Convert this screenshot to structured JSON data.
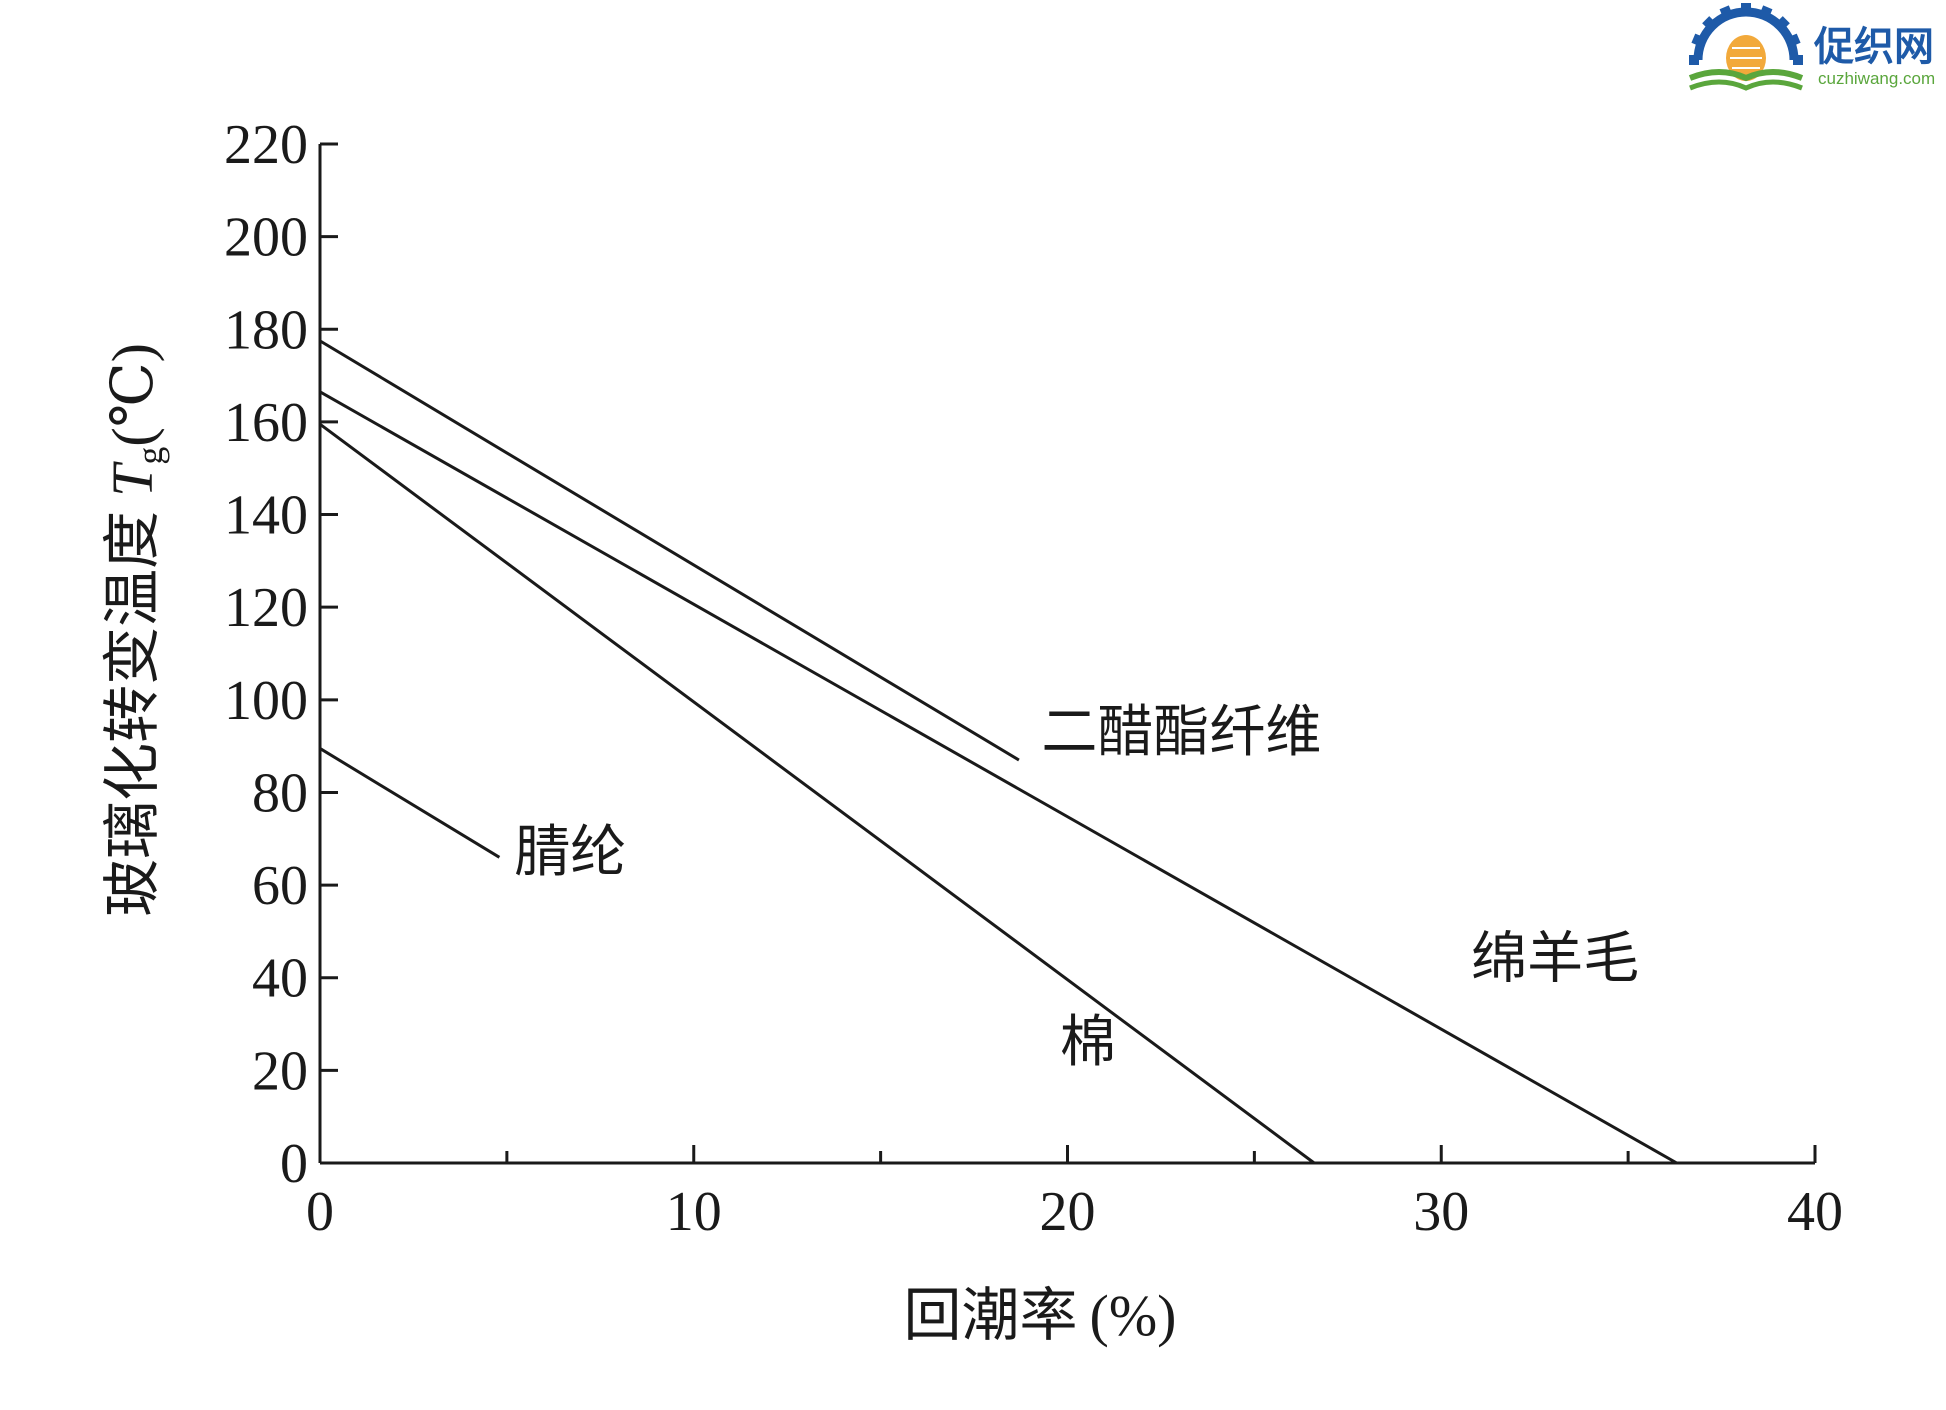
{
  "logo": {
    "name_cn": "促织网",
    "domain": "cuzhiwang.com",
    "color_primary": "#1e5aa8",
    "color_accent": "#f2a93b",
    "color_green": "#5aa63c"
  },
  "chart_data": {
    "type": "line",
    "title": "",
    "xlabel": "回潮率 (%)",
    "xlabel_cn": "回潮率",
    "xlabel_unit": "(%)",
    "ylabel": "玻璃化转变温度 Tg(℃)",
    "ylabel_cn": "玻璃化转变温度",
    "ylabel_symbol": "T",
    "ylabel_subscript": "g",
    "ylabel_unit": "(℃)",
    "xlim": [
      0,
      40
    ],
    "ylim": [
      0,
      220
    ],
    "xticks": [
      0,
      10,
      20,
      30,
      40
    ],
    "xticks_minor": [
      5,
      15,
      25,
      35
    ],
    "yticks": [
      0,
      20,
      40,
      60,
      80,
      100,
      120,
      140,
      160,
      180,
      200,
      220
    ],
    "grid": false,
    "line_color": "#1a1a1a",
    "series": [
      {
        "name": "二醋酯纤维",
        "x": [
          0,
          18.7
        ],
        "y": [
          177.5,
          87
        ]
      },
      {
        "name": "绵羊毛",
        "x": [
          0,
          36.3
        ],
        "y": [
          166.5,
          0
        ]
      },
      {
        "name": "棉",
        "x": [
          0,
          26.6
        ],
        "y": [
          159.5,
          0
        ]
      },
      {
        "name": "腈纶",
        "x": [
          0,
          4.8
        ],
        "y": [
          89.5,
          66
        ]
      }
    ],
    "annotations": [
      {
        "text": "二醋酯纤维",
        "series": "二醋酯纤维",
        "x": 19.3,
        "y": 89
      },
      {
        "text": "绵羊毛",
        "series": "绵羊毛",
        "x": 30.8,
        "y": 40
      },
      {
        "text": "棉",
        "series": "棉",
        "x": 19.8,
        "y": 22
      },
      {
        "text": "腈纶",
        "series": "腈纶",
        "x": 5.2,
        "y": 63
      }
    ]
  }
}
